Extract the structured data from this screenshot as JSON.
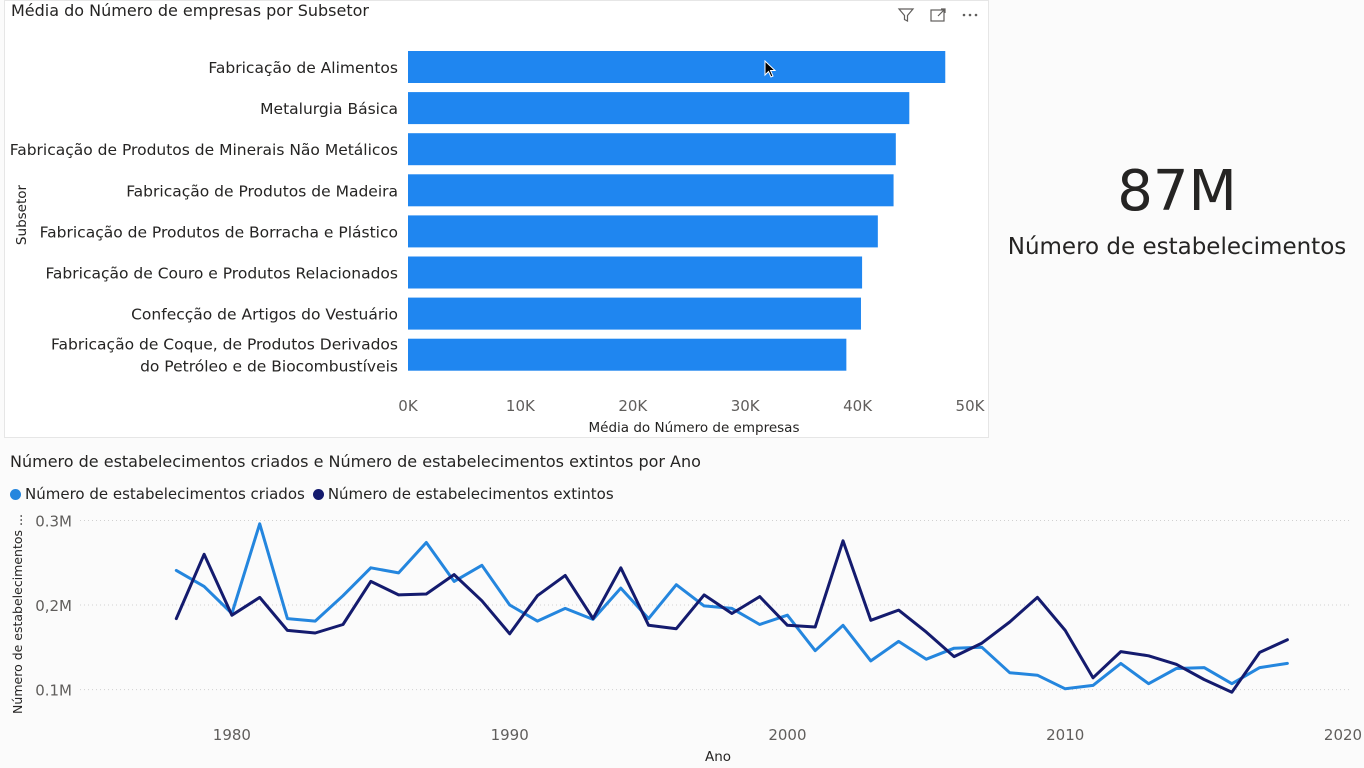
{
  "bar_visual": {
    "title": "Média do Número de empresas por Subsetor",
    "icons": [
      "filter-icon",
      "focus-mode-icon",
      "more-options-icon"
    ]
  },
  "card": {
    "value": "87M",
    "label": "Número de estabelecimentos"
  },
  "line_visual": {
    "title": "Número de estabelecimentos criados e Número de estabelecimentos extintos por Ano"
  },
  "colors": {
    "bar": "#1f86f0",
    "criados": "#2486de",
    "extintos": "#141b6e",
    "grid": "#d0d0d0",
    "axis_text": "#605e5c"
  },
  "chart_data": [
    {
      "type": "bar",
      "orientation": "horizontal",
      "title": "Média do Número de empresas por Subsetor",
      "xlabel": "Média do Número de empresas",
      "ylabel": "Subsetor",
      "xlim": [
        0,
        50000
      ],
      "x_ticks": [
        {
          "value": 0,
          "label": "0K"
        },
        {
          "value": 10000,
          "label": "10K"
        },
        {
          "value": 20000,
          "label": "20K"
        },
        {
          "value": 30000,
          "label": "30K"
        },
        {
          "value": 40000,
          "label": "40K"
        },
        {
          "value": 50000,
          "label": "50K"
        }
      ],
      "categories": [
        [
          "Fabricação de Alimentos"
        ],
        [
          "Metalurgia Básica"
        ],
        [
          "Fabricação de Produtos de Minerais Não Metálicos"
        ],
        [
          "Fabricação de Produtos de Madeira"
        ],
        [
          "Fabricação de Produtos de Borracha e Plástico"
        ],
        [
          "Fabricação de Couro e Produtos Relacionados"
        ],
        [
          "Confecção de Artigos do Vestuário"
        ],
        [
          "Fabricação de Coque, de Produtos Derivados",
          "do Petróleo e de Biocombustíveis"
        ]
      ],
      "values": [
        47800,
        44600,
        43400,
        43200,
        41800,
        40400,
        40300,
        39000
      ]
    },
    {
      "type": "line",
      "title": "Número de estabelecimentos criados e Número de estabelecimentos extintos por Ano",
      "xlabel": "Ano",
      "ylabel": "Número de estabelecimentos ...",
      "xlim": [
        1975,
        2020
      ],
      "ylim": [
        0.07,
        0.31
      ],
      "x_ticks": [
        1980,
        1990,
        2000,
        2010,
        2020
      ],
      "y_ticks": [
        {
          "value": 0.1,
          "label": "0.1M"
        },
        {
          "value": 0.2,
          "label": "0,2M"
        },
        {
          "value": 0.3,
          "label": "0.3M"
        }
      ],
      "x": [
        1978,
        1979,
        1980,
        1981,
        1982,
        1983,
        1984,
        1985,
        1986,
        1987,
        1988,
        1989,
        1990,
        1991,
        1992,
        1993,
        1994,
        1995,
        1996,
        1997,
        1998,
        1999,
        2000,
        2001,
        2002,
        2003,
        2004,
        2005,
        2006,
        2007,
        2008,
        2009,
        2010,
        2011,
        2012,
        2013,
        2014,
        2015,
        2016,
        2017,
        2018
      ],
      "series": [
        {
          "name": "Número de estabelecimentos criados",
          "values": [
            0.241,
            0.222,
            0.19,
            0.296,
            0.184,
            0.181,
            0.211,
            0.244,
            0.238,
            0.274,
            0.228,
            0.247,
            0.2,
            0.181,
            0.196,
            0.183,
            0.22,
            0.184,
            0.224,
            0.199,
            0.196,
            0.177,
            0.188,
            0.146,
            0.176,
            0.134,
            0.157,
            0.136,
            0.149,
            0.15,
            0.12,
            0.117,
            0.101,
            0.105,
            0.131,
            0.107,
            0.125,
            0.126,
            0.107,
            0.126,
            0.131
          ]
        },
        {
          "name": "Número de estabelecimentos extintos",
          "values": [
            0.184,
            0.26,
            0.188,
            0.209,
            0.17,
            0.167,
            0.177,
            0.228,
            0.212,
            0.213,
            0.236,
            0.205,
            0.166,
            0.211,
            0.235,
            0.184,
            0.244,
            0.176,
            0.172,
            0.212,
            0.19,
            0.21,
            0.176,
            0.174,
            0.276,
            0.182,
            0.194,
            0.168,
            0.139,
            0.155,
            0.18,
            0.209,
            0.17,
            0.114,
            0.145,
            0.14,
            0.13,
            0.112,
            0.097,
            0.144,
            0.159
          ]
        }
      ]
    }
  ]
}
